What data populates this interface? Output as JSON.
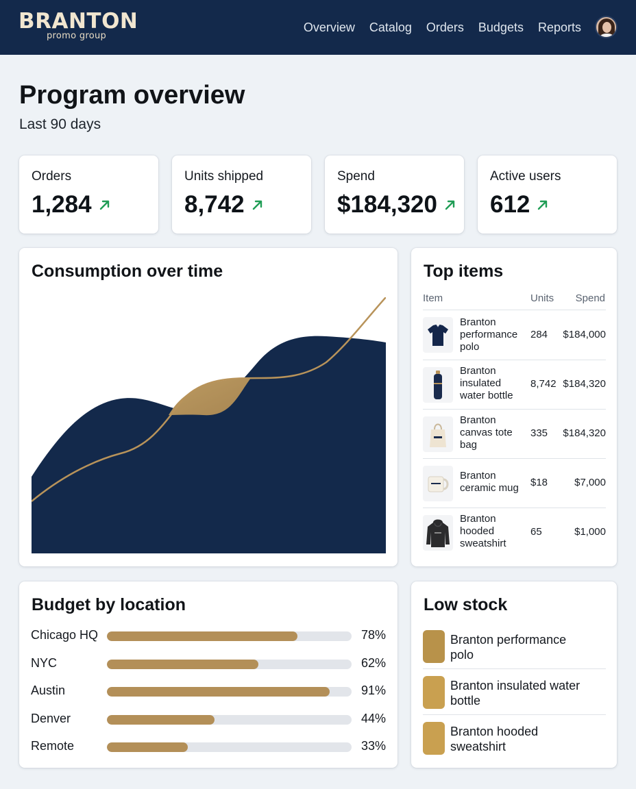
{
  "brand": {
    "name": "BRANTON",
    "tagline": "promo group"
  },
  "nav": [
    "Overview",
    "Catalog",
    "Orders",
    "Budgets",
    "Reports"
  ],
  "page": {
    "title": "Program overview",
    "subtitle": "Last 90 days"
  },
  "kpis": [
    {
      "label": "Orders",
      "value": "1,284",
      "trend": "up"
    },
    {
      "label": "Units shipped",
      "value": "8,742",
      "trend": "up"
    },
    {
      "label": "Spend",
      "value": "$184,320",
      "trend": "up"
    },
    {
      "label": "Active users",
      "value": "612",
      "trend": "up"
    }
  ],
  "consumption": {
    "title": "Consumption over time"
  },
  "top_items": {
    "title": "Top items",
    "columns": [
      "Item",
      "Units",
      "Spend"
    ],
    "rows": [
      {
        "name": "Branton performance polo",
        "units": "284",
        "spend": "$184,000",
        "icon": "polo-shirt-icon"
      },
      {
        "name": "Branton insulated water bottle",
        "units": "8,742",
        "spend": "$184,320",
        "icon": "water-bottle-icon"
      },
      {
        "name": "Branton canvas tote bag",
        "units": "335",
        "spend": "$184,320",
        "icon": "tote-bag-icon"
      },
      {
        "name": "Branton ceramic mug",
        "units": "$18",
        "spend": "$7,000",
        "icon": "mug-icon"
      },
      {
        "name": "Branton hooded sweatshirt",
        "units": "65",
        "spend": "$1,000",
        "icon": "hoodie-icon"
      }
    ]
  },
  "budget": {
    "title": "Budget by location",
    "rows": [
      {
        "label": "Chicago HQ",
        "pct_text": "78%",
        "fraction": 0.78
      },
      {
        "label": "NYC",
        "pct_text": "62%",
        "fraction": 0.62
      },
      {
        "label": "Austin",
        "pct_text": "91%",
        "fraction": 0.91
      },
      {
        "label": "Denver",
        "pct_text": "44%",
        "fraction": 0.44
      },
      {
        "label": "Remote",
        "pct_text": "33%",
        "fraction": 0.33
      }
    ]
  },
  "low_stock": {
    "title": "Low stock",
    "items": [
      {
        "name": "Branton performance polo",
        "color": "#b8924a"
      },
      {
        "name": "Branton insulated water bottle",
        "color": "#c9a050"
      },
      {
        "name": "Branton hooded sweatshirt",
        "color": "#c9a050"
      }
    ]
  },
  "colors": {
    "navy": "#13294b",
    "gold": "#b38f58",
    "trend_green": "#1f9d55"
  }
}
